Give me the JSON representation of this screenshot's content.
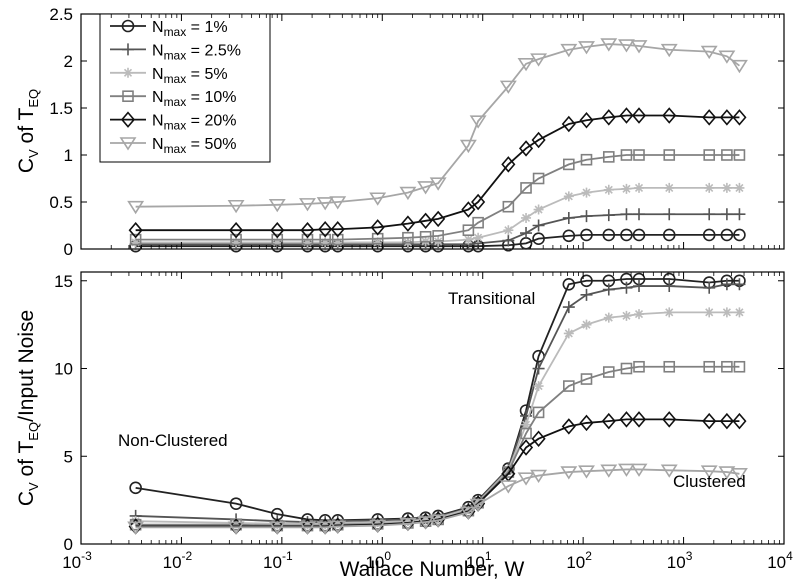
{
  "chart_data": [
    {
      "type": "line",
      "panel": "top",
      "xscale": "log",
      "xlim": [
        0.001,
        10000
      ],
      "ylim": [
        0,
        2.5
      ],
      "yticks": [
        "0",
        "0.5",
        "1",
        "1.5",
        "2",
        "2.5"
      ],
      "ylabel": {
        "main": "C",
        "sub1": "V",
        "mid": " of T",
        "sub2": "EQ"
      },
      "legend": {
        "placement": "top-left",
        "prefix": "N",
        "sub": "max"
      },
      "x": [
        0.0035,
        0.035,
        0.09,
        0.18,
        0.27,
        0.36,
        0.9,
        1.8,
        2.7,
        3.6,
        7.2,
        9.0,
        18,
        27,
        36,
        72,
        108,
        180,
        270,
        360,
        720,
        1800,
        2700,
        3600
      ],
      "series": [
        {
          "name": "N_max = 1%",
          "legend_value": " = 1%",
          "marker": "circle",
          "color": "#222222",
          "values": [
            0.03,
            0.03,
            0.03,
            0.03,
            0.03,
            0.03,
            0.03,
            0.03,
            0.03,
            0.03,
            0.03,
            0.03,
            0.04,
            0.06,
            0.11,
            0.14,
            0.15,
            0.15,
            0.15,
            0.15,
            0.15,
            0.15,
            0.15,
            0.15
          ]
        },
        {
          "name": "N_max = 2.5%",
          "legend_value": " = 2.5%",
          "marker": "plus",
          "color": "#555555",
          "values": [
            0.05,
            0.05,
            0.05,
            0.05,
            0.05,
            0.05,
            0.05,
            0.05,
            0.05,
            0.05,
            0.05,
            0.06,
            0.09,
            0.17,
            0.25,
            0.33,
            0.35,
            0.36,
            0.37,
            0.37,
            0.37,
            0.37,
            0.37,
            0.37
          ]
        },
        {
          "name": "N_max = 5%",
          "legend_value": " = 5%",
          "marker": "star",
          "color": "#bbbbbb",
          "values": [
            0.07,
            0.07,
            0.07,
            0.07,
            0.07,
            0.07,
            0.07,
            0.07,
            0.08,
            0.08,
            0.1,
            0.12,
            0.2,
            0.33,
            0.42,
            0.56,
            0.6,
            0.63,
            0.64,
            0.65,
            0.65,
            0.65,
            0.65,
            0.65
          ]
        },
        {
          "name": "N_max = 10%",
          "legend_value": " = 10%",
          "marker": "square",
          "color": "#808080",
          "values": [
            0.1,
            0.1,
            0.1,
            0.1,
            0.1,
            0.1,
            0.11,
            0.12,
            0.13,
            0.14,
            0.2,
            0.28,
            0.45,
            0.65,
            0.75,
            0.9,
            0.95,
            0.98,
            1.0,
            1.0,
            1.0,
            1.0,
            1.0,
            1.0
          ]
        },
        {
          "name": "N_max = 20%",
          "legend_value": " = 20%",
          "marker": "diamond",
          "color": "#111111",
          "values": [
            0.2,
            0.2,
            0.2,
            0.2,
            0.21,
            0.21,
            0.23,
            0.27,
            0.3,
            0.32,
            0.42,
            0.5,
            0.9,
            1.07,
            1.16,
            1.33,
            1.37,
            1.4,
            1.42,
            1.42,
            1.42,
            1.4,
            1.4,
            1.4
          ]
        },
        {
          "name": "N_max = 50%",
          "legend_value": " = 50%",
          "marker": "triangle-down",
          "color": "#a6a6a6",
          "values": [
            0.45,
            0.46,
            0.47,
            0.48,
            0.49,
            0.5,
            0.54,
            0.6,
            0.66,
            0.7,
            1.1,
            1.36,
            1.73,
            1.97,
            2.02,
            2.12,
            2.15,
            2.18,
            2.17,
            2.16,
            2.12,
            2.1,
            2.05,
            1.95
          ]
        }
      ]
    },
    {
      "type": "line",
      "panel": "bottom",
      "xscale": "log",
      "xlim": [
        0.001,
        10000
      ],
      "ylim": [
        0,
        15.5
      ],
      "yticks": [
        "0",
        "5",
        "10",
        "15"
      ],
      "xticks": [
        "10",
        "10",
        "10",
        "10",
        "10",
        "10",
        "10",
        "10"
      ],
      "xtick_exponents": [
        "-3",
        "-2",
        "-1",
        "0",
        "1",
        "2",
        "3",
        "4"
      ],
      "xlabel": "Wallace Number, W",
      "ylabel": {
        "main": "C",
        "sub1": "V",
        "mid": " of T",
        "sub2": "EQ",
        "tail": "/Input Noise"
      },
      "annotations": [
        "Non-Clustered",
        "Transitional",
        "Clustered"
      ],
      "x": [
        0.0035,
        0.035,
        0.09,
        0.18,
        0.27,
        0.36,
        0.9,
        1.8,
        2.7,
        3.6,
        7.2,
        9.0,
        18,
        27,
        36,
        72,
        108,
        180,
        270,
        360,
        720,
        1800,
        2700,
        3600
      ],
      "series": [
        {
          "name": "N_max = 1%",
          "marker": "circle",
          "color": "#222222",
          "values": [
            3.2,
            2.3,
            1.7,
            1.4,
            1.35,
            1.35,
            1.4,
            1.45,
            1.5,
            1.6,
            2.1,
            2.5,
            4.3,
            7.6,
            10.7,
            14.8,
            15.0,
            15.0,
            15.1,
            15.1,
            15.1,
            14.9,
            15.0,
            15.0
          ]
        },
        {
          "name": "N_max = 2.5%",
          "marker": "plus",
          "color": "#555555",
          "values": [
            1.6,
            1.4,
            1.3,
            1.25,
            1.25,
            1.3,
            1.35,
            1.4,
            1.45,
            1.55,
            2.05,
            2.45,
            4.3,
            7.3,
            10.0,
            13.5,
            14.2,
            14.5,
            14.6,
            14.7,
            14.7,
            14.6,
            14.8,
            14.8
          ]
        },
        {
          "name": "N_max = 5%",
          "marker": "star",
          "color": "#bbbbbb",
          "values": [
            1.3,
            1.2,
            1.15,
            1.15,
            1.15,
            1.2,
            1.25,
            1.3,
            1.4,
            1.5,
            2.0,
            2.4,
            4.2,
            6.8,
            9.0,
            12.0,
            12.5,
            12.9,
            13.0,
            13.1,
            13.2,
            13.2,
            13.2,
            13.2
          ]
        },
        {
          "name": "N_max = 10%",
          "marker": "square",
          "color": "#808080",
          "values": [
            1.1,
            1.1,
            1.05,
            1.05,
            1.05,
            1.1,
            1.15,
            1.2,
            1.3,
            1.4,
            1.9,
            2.35,
            4.1,
            6.3,
            7.5,
            9.0,
            9.4,
            9.8,
            10.0,
            10.1,
            10.1,
            10.1,
            10.1,
            10.1
          ]
        },
        {
          "name": "N_max = 20%",
          "marker": "diamond",
          "color": "#111111",
          "values": [
            1.0,
            1.0,
            1.0,
            1.0,
            1.0,
            1.05,
            1.1,
            1.2,
            1.3,
            1.4,
            1.85,
            2.3,
            4.0,
            5.5,
            6.0,
            6.7,
            6.9,
            7.0,
            7.1,
            7.1,
            7.1,
            7.0,
            7.0,
            7.0
          ]
        },
        {
          "name": "N_max = 50%",
          "marker": "triangle-down",
          "color": "#a6a6a6",
          "values": [
            0.95,
            0.95,
            0.95,
            0.95,
            0.95,
            1.0,
            1.05,
            1.15,
            1.25,
            1.35,
            1.8,
            2.25,
            3.3,
            3.75,
            3.9,
            4.1,
            4.15,
            4.2,
            4.25,
            4.25,
            4.2,
            4.15,
            4.1,
            4.0
          ]
        }
      ]
    }
  ]
}
